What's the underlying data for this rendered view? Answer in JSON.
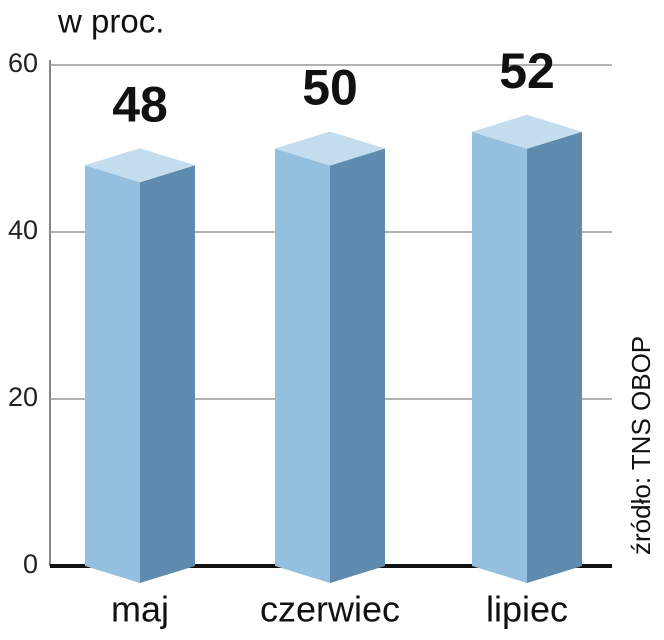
{
  "chart_data": {
    "type": "bar",
    "title": "w proc.",
    "source": "źródło: TNS OBOP",
    "categories": [
      "maj",
      "czerwiec",
      "lipiec"
    ],
    "values": [
      48,
      50,
      52
    ],
    "color": "#94bfdf",
    "ylim": [
      0,
      60
    ],
    "yticks": [
      0,
      20,
      40,
      60
    ],
    "grid": true
  }
}
